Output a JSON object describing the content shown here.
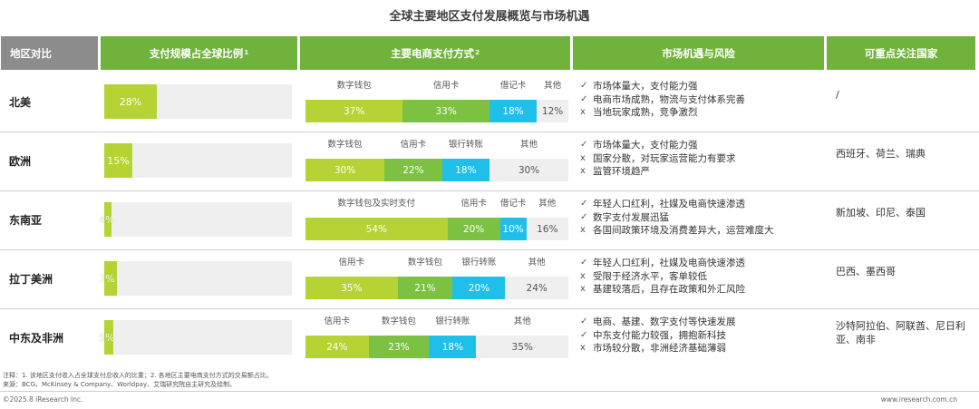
{
  "title": "全球主要地区支付发展概览与市场机遇",
  "headers": {
    "region": "地区对比",
    "share": "支付规模占全球比例",
    "share_sup": "1",
    "payment": "主要电商支付方式",
    "payment_sup": "2",
    "market": "市场机遇与风险",
    "countries": "可重点关注国家"
  },
  "colors": {
    "header_gray": "#8c8c8c",
    "header_green": "#6fb33c",
    "share_bar": "#b5d334",
    "share_track": "#efefef",
    "seg_lime": "#b5d334",
    "seg_green": "#7cc142",
    "seg_cyan": "#1ec0ea",
    "seg_gray": "#efefef"
  },
  "rows": [
    {
      "region": "北美",
      "share_pct": 28,
      "share_label": "28%",
      "payments": [
        {
          "name": "数字钱包",
          "pct": 37,
          "label": "37%",
          "color": "#b5d334"
        },
        {
          "name": "信用卡",
          "pct": 33,
          "label": "33%",
          "color": "#7cc142"
        },
        {
          "name": "借记卡",
          "pct": 18,
          "label": "18%",
          "color": "#1ec0ea"
        },
        {
          "name": "其他",
          "pct": 12,
          "label": "12%",
          "color": "#efefef"
        }
      ],
      "market": [
        {
          "mark": "✓",
          "text": "市场体量大，支付能力强"
        },
        {
          "mark": "✓",
          "text": "电商市场成熟，物流与支付体系完善"
        },
        {
          "mark": "x",
          "text": "当地玩家成熟，竞争激烈"
        }
      ],
      "countries": "/"
    },
    {
      "region": "欧洲",
      "share_pct": 15,
      "share_label": "15%",
      "payments": [
        {
          "name": "数字钱包",
          "pct": 30,
          "label": "30%",
          "color": "#b5d334"
        },
        {
          "name": "信用卡",
          "pct": 22,
          "label": "22%",
          "color": "#7cc142"
        },
        {
          "name": "银行转账",
          "pct": 18,
          "label": "18%",
          "color": "#1ec0ea"
        },
        {
          "name": "其他",
          "pct": 30,
          "label": "30%",
          "color": "#efefef"
        }
      ],
      "market": [
        {
          "mark": "✓",
          "text": "市场体量大，支付能力强"
        },
        {
          "mark": "x",
          "text": "国家分散，对玩家运营能力有要求"
        },
        {
          "mark": "x",
          "text": "监管环境趋严"
        }
      ],
      "countries": "西班牙、荷兰、瑞典"
    },
    {
      "region": "东南亚",
      "share_pct": 4,
      "share_label": "4%",
      "payments": [
        {
          "name": "数字钱包及实时支付",
          "pct": 54,
          "label": "54%",
          "color": "#b5d334"
        },
        {
          "name": "信用卡",
          "pct": 20,
          "label": "20%",
          "color": "#7cc142"
        },
        {
          "name": "借记卡",
          "pct": 10,
          "label": "10%",
          "color": "#1ec0ea"
        },
        {
          "name": "其他",
          "pct": 16,
          "label": "16%",
          "color": "#efefef"
        }
      ],
      "market": [
        {
          "mark": "✓",
          "text": "年轻人口红利，社媒及电商快速渗透"
        },
        {
          "mark": "✓",
          "text": "数字支付发展迅猛"
        },
        {
          "mark": "x",
          "text": "各国间政策环境及消费差异大，运营难度大"
        }
      ],
      "countries": "新加坡、印尼、泰国"
    },
    {
      "region": "拉丁美洲",
      "share_pct": 7,
      "share_label": "7%",
      "payments": [
        {
          "name": "信用卡",
          "pct": 35,
          "label": "35%",
          "color": "#b5d334"
        },
        {
          "name": "数字钱包",
          "pct": 21,
          "label": "21%",
          "color": "#7cc142"
        },
        {
          "name": "银行转账",
          "pct": 20,
          "label": "20%",
          "color": "#1ec0ea"
        },
        {
          "name": "其他",
          "pct": 24,
          "label": "24%",
          "color": "#efefef"
        }
      ],
      "market": [
        {
          "mark": "✓",
          "text": "年轻人口红利，社媒及电商快速渗透"
        },
        {
          "mark": "x",
          "text": "受限于经济水平，客单较低"
        },
        {
          "mark": "x",
          "text": "基建较落后，且存在政策和外汇风险"
        }
      ],
      "countries": "巴西、墨西哥"
    },
    {
      "region": "中东及非洲",
      "share_pct": 5,
      "share_label": "5%",
      "payments": [
        {
          "name": "信用卡",
          "pct": 24,
          "label": "24%",
          "color": "#b5d334"
        },
        {
          "name": "数字钱包",
          "pct": 23,
          "label": "23%",
          "color": "#7cc142"
        },
        {
          "name": "银行转账",
          "pct": 18,
          "label": "18%",
          "color": "#1ec0ea"
        },
        {
          "name": "其他",
          "pct": 35,
          "label": "35%",
          "color": "#efefef"
        }
      ],
      "market": [
        {
          "mark": "✓",
          "text": "电商、基建、数字支付等快速发展"
        },
        {
          "mark": "✓",
          "text": "中东支付能力较强，拥抱新科技"
        },
        {
          "mark": "x",
          "text": "市场较分散，非洲经济基础薄弱"
        }
      ],
      "countries": "沙特阿拉伯、阿联酋、尼日利亚、南非"
    }
  ],
  "notes": [
    "注释：1. 该地区支付收入占全球支付总收入的比重；2. 各地区主要电商支付方式的交易额占比。",
    "来源：BCG、McKinsey & Company、Worldpay、艾瑞研究院自主研究及绘制。"
  ],
  "copyright": "©2025.8 iResearch Inc.",
  "website": "www.iresearch.com.cn"
}
